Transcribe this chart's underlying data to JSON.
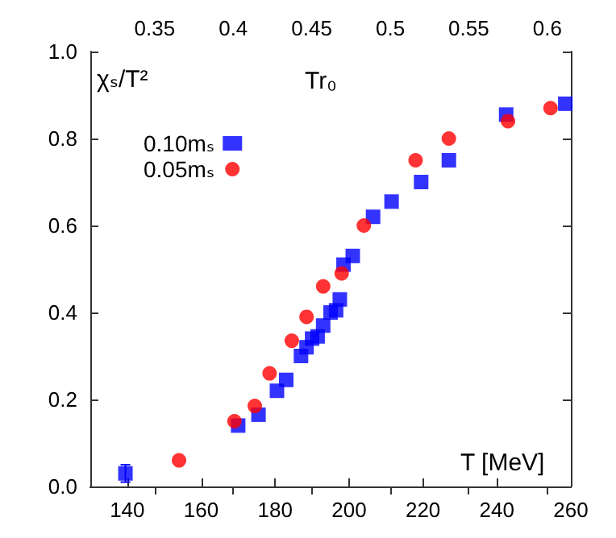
{
  "chart_data": {
    "type": "scatter",
    "xlabel": "T [MeV]",
    "ylabel": "χₛ/T²",
    "x2label": "Tr₀",
    "xlim": [
      130,
      260
    ],
    "xticks": [
      140,
      160,
      180,
      200,
      220,
      240,
      260
    ],
    "ylim": [
      0,
      1
    ],
    "yticks": [
      {
        "value": 0,
        "label": "0.0"
      },
      0.2,
      0.4,
      0.6,
      0.8,
      {
        "value": 1,
        "label": "1.0"
      }
    ],
    "x2lim": [
      0.309,
      0.615
    ],
    "x2ticks": [
      0.35,
      0.4,
      0.45,
      0.5,
      0.55,
      0.6
    ],
    "grid": false,
    "legend": "top left",
    "series": [
      {
        "name": "0.10mₛ",
        "color": "#0000ff",
        "marker": "square",
        "x": [
          139.5,
          170,
          175.5,
          180.5,
          183,
          187,
          188.5,
          190,
          191.5,
          193,
          195,
          196.5,
          197.5,
          198.5,
          201,
          206.5,
          211.5,
          219.5,
          227,
          242.5,
          258.5
        ],
        "values": [
          0.03,
          0.14,
          0.165,
          0.22,
          0.245,
          0.3,
          0.32,
          0.34,
          0.345,
          0.37,
          0.4,
          0.405,
          0.43,
          0.51,
          0.53,
          0.62,
          0.655,
          0.7,
          0.75,
          0.855,
          0.88
        ],
        "errors": [
          0.02,
          null,
          null,
          null,
          null,
          null,
          null,
          null,
          null,
          null,
          null,
          null,
          null,
          null,
          null,
          null,
          null,
          null,
          null,
          null,
          null
        ]
      },
      {
        "name": "0.05mₛ",
        "color": "#ff0000",
        "marker": "circle",
        "x": [
          154,
          169,
          174.5,
          178.5,
          184.5,
          188.5,
          193,
          198,
          204,
          218,
          227,
          243,
          254.5
        ],
        "values": [
          0.06,
          0.15,
          0.185,
          0.26,
          0.335,
          0.39,
          0.46,
          0.49,
          0.6,
          0.75,
          0.8,
          0.84,
          0.87
        ]
      }
    ]
  }
}
